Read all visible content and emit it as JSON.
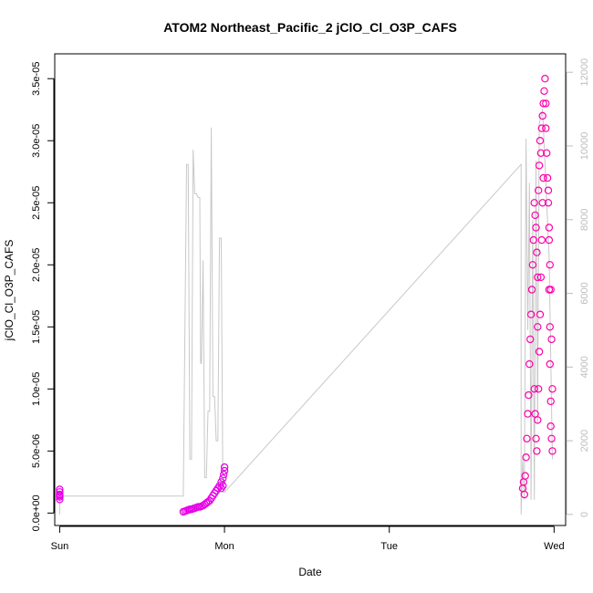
{
  "chart_data": {
    "type": "scatter",
    "title": "ATOM2 Northeast_Pacific_2 jClO_Cl_O3P_CAFS",
    "xlabel": "Date",
    "ylabel": "jClO_Cl_O3P_CAFS",
    "x_ticks": [
      "Sun",
      "Mon",
      "Tue",
      "Wed"
    ],
    "xlim": [
      -0.03,
      3.07
    ],
    "ylim": [
      -1e-06,
      3.7e-05
    ],
    "y_ticks": [
      "0.0e+00",
      "5.0e-06",
      "1.0e-05",
      "1.5e-05",
      "2.0e-05",
      "2.5e-05",
      "3.0e-05",
      "3.5e-05"
    ],
    "y_tick_values": [
      0,
      5e-06,
      1e-05,
      1.5e-05,
      2e-05,
      2.5e-05,
      3e-05,
      3.5e-05
    ],
    "y2lim": [
      -300,
      12500
    ],
    "y2_ticks": [
      "0",
      "2000",
      "4000",
      "6000",
      "8000",
      "10000",
      "12000"
    ],
    "y2_tick_values": [
      0,
      2000,
      4000,
      6000,
      8000,
      10000,
      12000
    ],
    "colors": {
      "points": "#ff00aa",
      "points_alt": "#e600e6",
      "altitude_line": "#c8c8c8",
      "right_axis": "#bdbdbd"
    },
    "series": [
      {
        "marker": "circle-open",
        "points": [
          [
            0.0,
            1.3e-06
          ],
          [
            0.0,
            1.7e-06
          ],
          [
            0.0,
            1.5e-06
          ],
          [
            0.0,
            1.1e-06
          ],
          [
            0.0,
            1.9e-06
          ],
          [
            0.0,
            1.4e-06
          ],
          [
            0.75,
            1e-07
          ],
          [
            0.76,
            1.5e-07
          ],
          [
            0.77,
            2e-07
          ],
          [
            0.78,
            2.5e-07
          ],
          [
            0.79,
            3e-07
          ],
          [
            0.8,
            3e-07
          ],
          [
            0.81,
            3.5e-07
          ],
          [
            0.82,
            4e-07
          ],
          [
            0.83,
            4.5e-07
          ],
          [
            0.84,
            5e-07
          ],
          [
            0.85,
            5e-07
          ],
          [
            0.86,
            5.5e-07
          ],
          [
            0.87,
            6e-07
          ],
          [
            0.88,
            7e-07
          ],
          [
            0.89,
            8e-07
          ],
          [
            0.9,
            9e-07
          ],
          [
            0.91,
            1e-06
          ],
          [
            0.92,
            1.2e-06
          ],
          [
            0.93,
            1.4e-06
          ],
          [
            0.94,
            1.6e-06
          ],
          [
            0.95,
            1.8e-06
          ],
          [
            0.96,
            2e-06
          ],
          [
            0.97,
            2.2e-06
          ],
          [
            0.98,
            2.5e-06
          ],
          [
            0.99,
            2.8e-06
          ],
          [
            0.995,
            3.1e-06
          ],
          [
            1.0,
            3.4e-06
          ],
          [
            1.0,
            3.7e-06
          ],
          [
            0.99,
            2.2e-06
          ],
          [
            0.98,
            2e-06
          ],
          [
            2.81,
            2e-06
          ],
          [
            2.815,
            2.5e-06
          ],
          [
            2.82,
            1.5e-06
          ],
          [
            2.825,
            3e-06
          ],
          [
            2.83,
            4.5e-06
          ],
          [
            2.835,
            6e-06
          ],
          [
            2.84,
            8e-06
          ],
          [
            2.845,
            9.5e-06
          ],
          [
            2.85,
            1.2e-05
          ],
          [
            2.855,
            1.4e-05
          ],
          [
            2.86,
            1.6e-05
          ],
          [
            2.865,
            1.8e-05
          ],
          [
            2.87,
            2e-05
          ],
          [
            2.875,
            2.2e-05
          ],
          [
            2.88,
            2.5e-05
          ],
          [
            2.885,
            2.4e-05
          ],
          [
            2.89,
            2.3e-05
          ],
          [
            2.895,
            2.1e-05
          ],
          [
            2.9,
            1.9e-05
          ],
          [
            2.9,
            1.5e-05
          ],
          [
            2.905,
            2.6e-05
          ],
          [
            2.91,
            2.8e-05
          ],
          [
            2.915,
            3e-05
          ],
          [
            2.92,
            2.9e-05
          ],
          [
            2.925,
            3.1e-05
          ],
          [
            2.93,
            3.2e-05
          ],
          [
            2.935,
            3.3e-05
          ],
          [
            2.94,
            3.4e-05
          ],
          [
            2.945,
            3.5e-05
          ],
          [
            2.95,
            3.3e-05
          ],
          [
            2.95,
            3.1e-05
          ],
          [
            2.955,
            2.9e-05
          ],
          [
            2.96,
            2.7e-05
          ],
          [
            2.965,
            2.5e-05
          ],
          [
            2.97,
            2.2e-05
          ],
          [
            2.97,
            1.8e-05
          ],
          [
            2.975,
            1.5e-05
          ],
          [
            2.975,
            1.2e-05
          ],
          [
            2.98,
            9e-06
          ],
          [
            2.98,
            7e-06
          ],
          [
            2.985,
            6e-06
          ],
          [
            2.99,
            5e-06
          ],
          [
            2.99,
            1e-05
          ],
          [
            2.985,
            1.4e-05
          ],
          [
            2.98,
            1.8e-05
          ],
          [
            2.975,
            2e-05
          ],
          [
            2.97,
            2.3e-05
          ],
          [
            2.965,
            2.6e-05
          ],
          [
            2.88,
            1e-05
          ],
          [
            2.885,
            8e-06
          ],
          [
            2.89,
            6e-06
          ],
          [
            2.895,
            5e-06
          ],
          [
            2.9,
            7.5e-06
          ],
          [
            2.905,
            1e-05
          ],
          [
            2.91,
            1.3e-05
          ],
          [
            2.915,
            1.6e-05
          ],
          [
            2.92,
            1.9e-05
          ],
          [
            2.925,
            2.2e-05
          ],
          [
            2.93,
            2.5e-05
          ],
          [
            2.935,
            2.7e-05
          ]
        ]
      },
      {
        "axis": "right",
        "line": [
          [
            0.0,
            0
          ],
          [
            0.0,
            500
          ],
          [
            0.75,
            500
          ],
          [
            0.77,
            9500
          ],
          [
            0.78,
            9500
          ],
          [
            0.79,
            1500
          ],
          [
            0.8,
            1500
          ],
          [
            0.81,
            9900
          ],
          [
            0.82,
            8700
          ],
          [
            0.83,
            8700
          ],
          [
            0.84,
            8600
          ],
          [
            0.85,
            8600
          ],
          [
            0.855,
            4100
          ],
          [
            0.86,
            4100
          ],
          [
            0.87,
            6900
          ],
          [
            0.88,
            1000
          ],
          [
            0.89,
            1000
          ],
          [
            0.9,
            2800
          ],
          [
            0.91,
            2800
          ],
          [
            0.92,
            10500
          ],
          [
            0.93,
            3200
          ],
          [
            0.94,
            3200
          ],
          [
            0.95,
            2000
          ],
          [
            0.96,
            2000
          ],
          [
            0.97,
            7500
          ],
          [
            0.98,
            7500
          ],
          [
            0.99,
            600
          ],
          [
            1.0,
            600
          ],
          [
            2.8,
            9500
          ],
          [
            2.8,
            0
          ],
          [
            2.81,
            1500
          ],
          [
            2.82,
            400
          ],
          [
            2.83,
            10200
          ],
          [
            2.84,
            5000
          ],
          [
            2.85,
            9000
          ],
          [
            2.86,
            400
          ],
          [
            2.87,
            8000
          ],
          [
            2.88,
            400
          ],
          [
            2.89,
            9600
          ],
          [
            2.9,
            2500
          ],
          [
            2.91,
            10600
          ],
          [
            2.93,
            11000
          ],
          [
            2.95,
            9000
          ],
          [
            2.97,
            7000
          ],
          [
            2.99,
            1500
          ]
        ]
      }
    ]
  }
}
